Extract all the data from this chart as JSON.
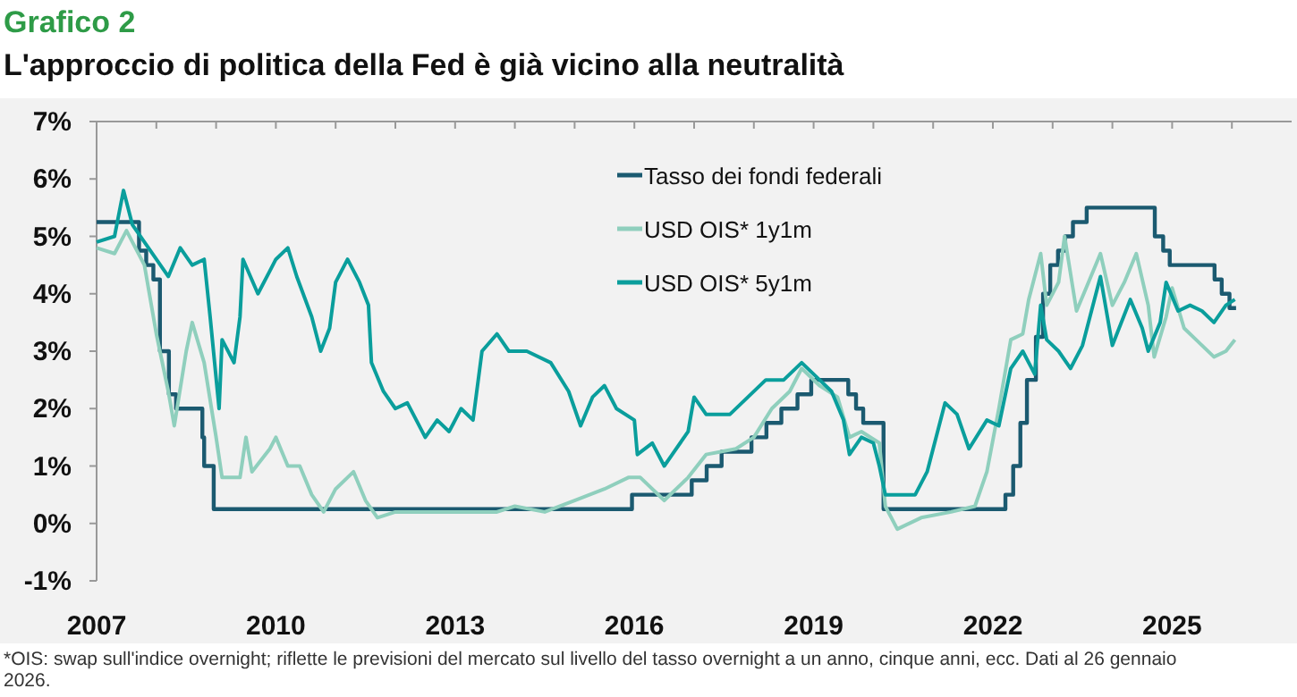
{
  "chart_data": {
    "type": "line",
    "title": "Grafico 2",
    "subtitle": "L'approccio di politica della Fed è già vicino alla neutralità",
    "xlim": [
      2007,
      2027
    ],
    "xticks": [
      2007,
      {
        "value": 2008,
        "label": null
      },
      {
        "value": 2009,
        "label": null
      },
      2010,
      {
        "value": 2011,
        "label": null
      },
      {
        "value": 2012,
        "label": null
      },
      2013,
      {
        "value": 2014,
        "label": null
      },
      {
        "value": 2015,
        "label": null
      },
      2016,
      {
        "value": 2017,
        "label": null
      },
      {
        "value": 2018,
        "label": null
      },
      2019,
      {
        "value": 2020,
        "label": null
      },
      {
        "value": 2021,
        "label": null
      },
      2022,
      {
        "value": 2023,
        "label": null
      },
      {
        "value": 2024,
        "label": null
      },
      2025,
      {
        "value": 2026,
        "label": null
      }
    ],
    "ylim": [
      -1,
      7
    ],
    "yticks": [
      {
        "value": -1,
        "label": "-1%"
      },
      {
        "value": 0,
        "label": "0%"
      },
      {
        "value": 1,
        "label": "1%"
      },
      {
        "value": 2,
        "label": "2%"
      },
      {
        "value": 3,
        "label": "3%"
      },
      {
        "value": 4,
        "label": "4%"
      },
      {
        "value": 5,
        "label": "5%"
      },
      {
        "value": 6,
        "label": "6%"
      },
      {
        "value": 7,
        "label": "7%"
      }
    ],
    "legend": "top",
    "grid": false,
    "annotations": [
      "*OIS: swap sull'indice overnight; riflette le previsioni del mercato sul livello del tasso overnight a un anno, cinque anni, ecc. Dati al 26 gennaio 2026."
    ],
    "series": [
      {
        "name": "Tasso dei fondi federali",
        "type": "step",
        "color": "#1b5a70",
        "x": [
          2007,
          2007.71,
          2007.83,
          2007.95,
          2008.06,
          2008.21,
          2008.33,
          2008.77,
          2008.8,
          2008.96,
          2015.96,
          2016.96,
          2017.21,
          2017.46,
          2017.96,
          2018.21,
          2018.46,
          2018.73,
          2018.96,
          2019.58,
          2019.71,
          2019.83,
          2020.17,
          2022.21,
          2022.34,
          2022.46,
          2022.57,
          2022.72,
          2022.84,
          2022.96,
          2023.09,
          2023.21,
          2023.34,
          2023.57,
          2024.71,
          2024.85,
          2024.96,
          2025.71,
          2025.83,
          2025.96,
          2026.07
        ],
        "values": [
          5.25,
          4.75,
          4.5,
          4.25,
          3.0,
          2.25,
          2.0,
          1.5,
          1.0,
          0.25,
          0.5,
          0.75,
          1.0,
          1.25,
          1.5,
          1.75,
          2.0,
          2.25,
          2.5,
          2.25,
          2.0,
          1.75,
          0.25,
          0.5,
          1.0,
          1.75,
          2.5,
          3.25,
          4.0,
          4.5,
          4.75,
          5.0,
          5.25,
          5.5,
          5.0,
          4.75,
          4.5,
          4.25,
          4.0,
          3.75,
          3.75
        ]
      },
      {
        "name": "USD OIS* 1y1m",
        "color": "#8fcfbd",
        "x": [
          2007,
          2007.3,
          2007.5,
          2007.8,
          2008.0,
          2008.2,
          2008.3,
          2008.5,
          2008.6,
          2008.8,
          2009.0,
          2009.1,
          2009.4,
          2009.5,
          2009.6,
          2009.9,
          2010.0,
          2010.2,
          2010.4,
          2010.6,
          2010.8,
          2011.0,
          2011.3,
          2011.5,
          2011.7,
          2012.0,
          2013.0,
          2013.7,
          2014.0,
          2014.5,
          2015.0,
          2015.5,
          2015.9,
          2016.1,
          2016.5,
          2016.9,
          2017.2,
          2017.7,
          2018.0,
          2018.3,
          2018.6,
          2018.8,
          2019.1,
          2019.4,
          2019.6,
          2019.8,
          2020.1,
          2020.2,
          2020.4,
          2020.8,
          2021.3,
          2021.7,
          2021.9,
          2022.1,
          2022.3,
          2022.5,
          2022.6,
          2022.8,
          2022.9,
          2023.1,
          2023.2,
          2023.4,
          2023.6,
          2023.8,
          2024.0,
          2024.2,
          2024.4,
          2024.6,
          2024.7,
          2024.9,
          2025.0,
          2025.2,
          2025.4,
          2025.7,
          2025.9,
          2026.05
        ],
        "values": [
          4.8,
          4.7,
          5.1,
          4.5,
          3.3,
          2.3,
          1.7,
          3.0,
          3.5,
          2.8,
          1.5,
          0.8,
          0.8,
          1.5,
          0.9,
          1.3,
          1.5,
          1.0,
          1.0,
          0.5,
          0.2,
          0.6,
          0.9,
          0.4,
          0.1,
          0.2,
          0.2,
          0.2,
          0.3,
          0.2,
          0.4,
          0.6,
          0.8,
          0.8,
          0.4,
          0.8,
          1.2,
          1.3,
          1.5,
          2.0,
          2.3,
          2.7,
          2.4,
          2.2,
          1.5,
          1.6,
          1.4,
          0.3,
          -0.1,
          0.1,
          0.2,
          0.3,
          0.9,
          2.0,
          3.2,
          3.3,
          3.9,
          4.7,
          3.8,
          4.2,
          5.0,
          3.7,
          4.2,
          4.7,
          3.8,
          4.2,
          4.7,
          3.8,
          2.9,
          3.6,
          4.1,
          3.4,
          3.2,
          2.9,
          3.0,
          3.2
        ]
      },
      {
        "name": "USD OIS* 5y1m",
        "color": "#0a9e9c",
        "x": [
          2007,
          2007.3,
          2007.45,
          2007.6,
          2007.8,
          2008.0,
          2008.2,
          2008.4,
          2008.6,
          2008.8,
          2008.9,
          2009.05,
          2009.1,
          2009.3,
          2009.4,
          2009.45,
          2009.7,
          2009.9,
          2010.0,
          2010.2,
          2010.35,
          2010.6,
          2010.75,
          2010.9,
          2011.0,
          2011.2,
          2011.4,
          2011.55,
          2011.6,
          2011.8,
          2012.0,
          2012.2,
          2012.3,
          2012.5,
          2012.7,
          2012.9,
          2013.1,
          2013.3,
          2013.45,
          2013.7,
          2013.9,
          2014.2,
          2014.6,
          2014.9,
          2015.1,
          2015.3,
          2015.5,
          2015.7,
          2016.0,
          2016.05,
          2016.3,
          2016.5,
          2016.9,
          2017.0,
          2017.2,
          2017.6,
          2017.9,
          2018.2,
          2018.5,
          2018.8,
          2019.1,
          2019.3,
          2019.5,
          2019.6,
          2019.8,
          2020.0,
          2020.1,
          2020.2,
          2020.5,
          2020.7,
          2020.9,
          2021.2,
          2021.4,
          2021.6,
          2021.9,
          2022.1,
          2022.3,
          2022.5,
          2022.7,
          2022.8,
          2022.9,
          2023.1,
          2023.3,
          2023.5,
          2023.8,
          2024.0,
          2024.3,
          2024.5,
          2024.6,
          2024.8,
          2024.9,
          2025.1,
          2025.3,
          2025.5,
          2025.7,
          2025.9,
          2026.05
        ],
        "values": [
          4.9,
          5.0,
          5.8,
          5.2,
          4.9,
          4.6,
          4.3,
          4.8,
          4.5,
          4.6,
          3.6,
          2.0,
          3.2,
          2.8,
          3.6,
          4.6,
          4.0,
          4.4,
          4.6,
          4.8,
          4.3,
          3.6,
          3.0,
          3.4,
          4.2,
          4.6,
          4.2,
          3.8,
          2.8,
          2.3,
          2.0,
          2.1,
          1.9,
          1.5,
          1.8,
          1.6,
          2.0,
          1.8,
          3.0,
          3.3,
          3.0,
          3.0,
          2.8,
          2.3,
          1.7,
          2.2,
          2.4,
          2.0,
          1.8,
          1.2,
          1.4,
          1.0,
          1.6,
          2.2,
          1.9,
          1.9,
          2.2,
          2.5,
          2.5,
          2.8,
          2.5,
          2.3,
          1.8,
          1.2,
          1.5,
          1.4,
          1.0,
          0.5,
          0.5,
          0.5,
          0.9,
          2.1,
          1.9,
          1.3,
          1.8,
          1.7,
          2.7,
          3.0,
          2.6,
          3.8,
          3.2,
          3.0,
          2.7,
          3.1,
          4.3,
          3.1,
          3.9,
          3.4,
          3.0,
          3.5,
          4.2,
          3.7,
          3.8,
          3.7,
          3.5,
          3.8,
          3.9
        ]
      }
    ]
  }
}
